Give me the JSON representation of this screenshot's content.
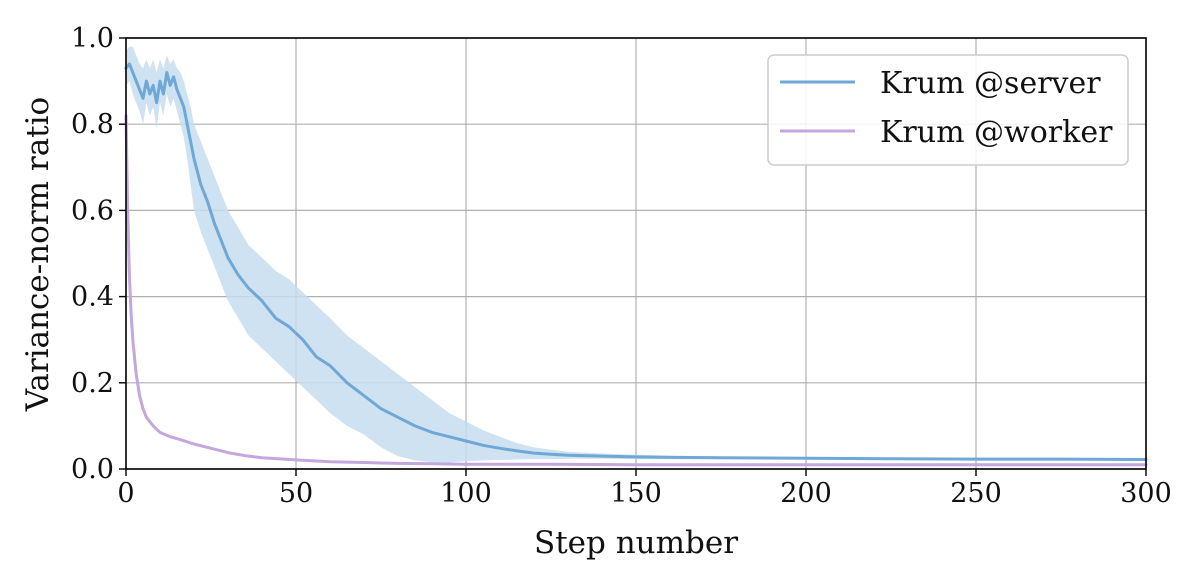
{
  "chart_data": {
    "type": "line",
    "title": "",
    "xlabel": "Step number",
    "ylabel": "Variance-norm ratio",
    "xlim": [
      0,
      300
    ],
    "ylim": [
      0.0,
      1.0
    ],
    "xticks": [
      0,
      50,
      100,
      150,
      200,
      250,
      300
    ],
    "yticks": [
      0.0,
      0.2,
      0.4,
      0.6,
      0.8,
      1.0
    ],
    "xtick_labels": [
      "0",
      "50",
      "100",
      "150",
      "200",
      "250",
      "300"
    ],
    "ytick_labels": [
      "0.0",
      "0.2",
      "0.4",
      "0.6",
      "0.8",
      "1.0"
    ],
    "grid": true,
    "legend_position": "top-right",
    "series": [
      {
        "name": "Krum @server",
        "color": "#6fa8d6",
        "band_color": "#c6ddee",
        "x": [
          0,
          1,
          2,
          3,
          4,
          5,
          6,
          7,
          8,
          9,
          10,
          11,
          12,
          13,
          14,
          15,
          16,
          17,
          18,
          19,
          20,
          22,
          24,
          26,
          28,
          30,
          33,
          36,
          40,
          44,
          48,
          52,
          56,
          60,
          65,
          70,
          75,
          80,
          85,
          90,
          95,
          100,
          105,
          110,
          115,
          120,
          125,
          130,
          140,
          150,
          160,
          175,
          200,
          225,
          250,
          275,
          300
        ],
        "y": [
          0.93,
          0.94,
          0.92,
          0.9,
          0.88,
          0.86,
          0.9,
          0.87,
          0.89,
          0.85,
          0.9,
          0.87,
          0.92,
          0.89,
          0.91,
          0.88,
          0.86,
          0.84,
          0.8,
          0.76,
          0.72,
          0.66,
          0.62,
          0.57,
          0.53,
          0.49,
          0.45,
          0.42,
          0.39,
          0.35,
          0.33,
          0.3,
          0.26,
          0.24,
          0.2,
          0.17,
          0.14,
          0.12,
          0.1,
          0.085,
          0.075,
          0.065,
          0.055,
          0.048,
          0.042,
          0.037,
          0.034,
          0.032,
          0.03,
          0.028,
          0.027,
          0.026,
          0.025,
          0.024,
          0.023,
          0.023,
          0.022
        ],
        "band_upper": [
          0.97,
          0.98,
          0.98,
          0.96,
          0.94,
          0.93,
          0.95,
          0.93,
          0.95,
          0.92,
          0.95,
          0.93,
          0.96,
          0.94,
          0.95,
          0.93,
          0.92,
          0.9,
          0.87,
          0.84,
          0.8,
          0.76,
          0.72,
          0.68,
          0.64,
          0.6,
          0.56,
          0.52,
          0.49,
          0.46,
          0.44,
          0.41,
          0.38,
          0.35,
          0.31,
          0.28,
          0.25,
          0.22,
          0.19,
          0.16,
          0.13,
          0.11,
          0.09,
          0.075,
          0.06,
          0.05,
          0.045,
          0.04,
          0.036,
          0.033,
          0.031,
          0.029,
          0.027,
          0.026,
          0.025,
          0.025,
          0.024
        ],
        "band_lower": [
          0.89,
          0.9,
          0.87,
          0.85,
          0.83,
          0.8,
          0.85,
          0.82,
          0.84,
          0.79,
          0.85,
          0.82,
          0.87,
          0.84,
          0.86,
          0.83,
          0.8,
          0.77,
          0.72,
          0.66,
          0.6,
          0.55,
          0.51,
          0.47,
          0.43,
          0.39,
          0.35,
          0.31,
          0.28,
          0.25,
          0.22,
          0.19,
          0.16,
          0.13,
          0.1,
          0.08,
          0.05,
          0.03,
          0.02,
          0.015,
          0.015,
          0.018,
          0.02,
          0.021,
          0.022,
          0.023,
          0.023,
          0.024,
          0.024,
          0.023,
          0.023,
          0.023,
          0.023,
          0.022,
          0.021,
          0.021,
          0.02
        ]
      },
      {
        "name": "Krum @worker",
        "color": "#c3a7dd",
        "x": [
          0,
          0.5,
          1,
          1.5,
          2,
          3,
          4,
          5,
          6,
          8,
          10,
          13,
          16,
          20,
          25,
          30,
          35,
          40,
          50,
          60,
          70,
          80,
          90,
          100,
          125,
          150,
          200,
          250,
          300
        ],
        "y": [
          0.82,
          0.6,
          0.45,
          0.36,
          0.3,
          0.22,
          0.17,
          0.14,
          0.12,
          0.1,
          0.085,
          0.075,
          0.068,
          0.058,
          0.048,
          0.038,
          0.031,
          0.026,
          0.021,
          0.017,
          0.015,
          0.013,
          0.012,
          0.011,
          0.011,
          0.01,
          0.01,
          0.01,
          0.01
        ]
      }
    ]
  }
}
